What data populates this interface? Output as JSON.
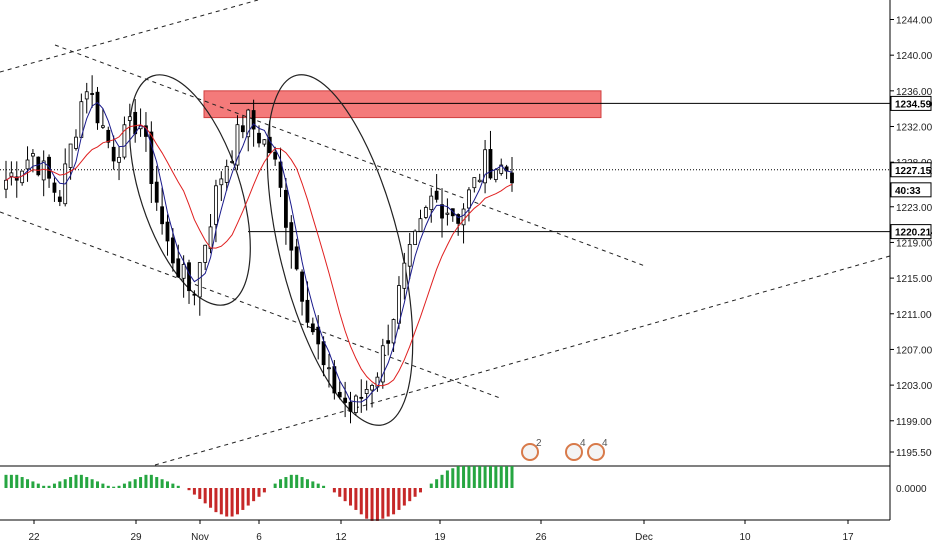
{
  "chart_data": {
    "type": "candlestick",
    "title": "",
    "xlabel": "",
    "ylabel": "",
    "ylim": [
      1193,
      1248
    ],
    "grid": false,
    "x_ticks": [
      "22",
      "29",
      "Nov",
      "6",
      "12",
      "19",
      "26",
      "Dec",
      "10",
      "17"
    ],
    "y_ticks": [
      "1244.000",
      "1240.000",
      "1236.000",
      "1232.000",
      "1228.000",
      "1223.000",
      "1219.000",
      "1215.000",
      "1211.000",
      "1207.000",
      "1203.000",
      "1199.000",
      "1195.500"
    ],
    "price_tags": [
      {
        "label": "1234.590",
        "value": 1234.59,
        "color": "#000000"
      },
      {
        "label": "1227.151",
        "value": 1227.151,
        "color": "#000000"
      },
      {
        "label": "40:33",
        "value": 1224.9,
        "color": "#000000"
      },
      {
        "label": "1220.214",
        "value": 1220.214,
        "color": "#000000"
      }
    ],
    "horizontal_lines": [
      {
        "value": 1234.59,
        "style": "solid"
      },
      {
        "value": 1227.151,
        "style": "dotted"
      },
      {
        "value": 1220.214,
        "style": "solid"
      }
    ],
    "supply_zone": {
      "from": 1233.0,
      "to": 1236.0,
      "color": "#f47a7a"
    },
    "anchor_closes": [
      1226,
      1229,
      1224,
      1237,
      1229,
      1233,
      1219,
      1213,
      1226,
      1233,
      1229,
      1215,
      1204,
      1200,
      1205,
      1216,
      1224,
      1222,
      1228,
      1227
    ],
    "oscillator": {
      "ylim": [
        -8,
        8
      ],
      "tick_label": "0.0000",
      "positive_color": "#26a641",
      "negative_color": "#c62828",
      "values": [
        3,
        3,
        3,
        2.5,
        2,
        1.5,
        1,
        0.5,
        0.5,
        1,
        1.5,
        2,
        2.5,
        3,
        3,
        2.5,
        2,
        1.5,
        1,
        0.5,
        0.3,
        0.5,
        1,
        1.5,
        2,
        2.5,
        3,
        3,
        2.5,
        2,
        1.5,
        1,
        0.5,
        0,
        -0.5,
        -1.5,
        -2.5,
        -3.5,
        -4.5,
        -5.5,
        -6,
        -6.5,
        -6.5,
        -6,
        -5,
        -4,
        -3,
        -2,
        -1,
        0,
        1,
        2,
        2.5,
        3,
        3,
        2.5,
        2,
        1.5,
        1,
        0.5,
        0,
        -1,
        -2,
        -3,
        -4,
        -5,
        -6,
        -7,
        -7.5,
        -7.5,
        -7,
        -6.5,
        -6,
        -5,
        -4,
        -3,
        -2,
        -1,
        0,
        1,
        2,
        3,
        4,
        4.5,
        5,
        5,
        5,
        5,
        5,
        5,
        5,
        5,
        5,
        5,
        5
      ]
    },
    "legend": []
  },
  "event_badges": [
    "2",
    "4",
    "4"
  ]
}
